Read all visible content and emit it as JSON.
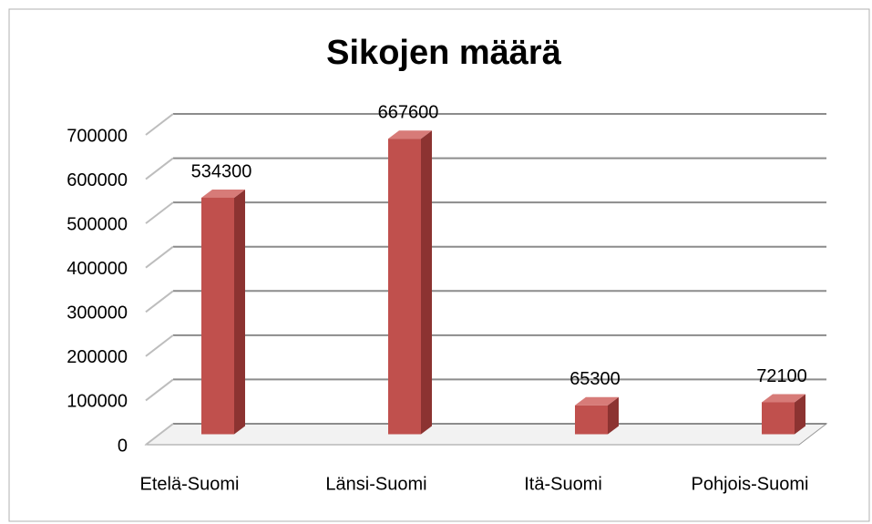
{
  "chart_data": {
    "type": "bar",
    "title": "Sikojen määrä",
    "categories": [
      "Etelä-Suomi",
      "Länsi-Suomi",
      "Itä-Suomi",
      "Pohjois-Suomi"
    ],
    "values": [
      534300,
      667600,
      65300,
      72100
    ],
    "color": "#c0504d",
    "ylim": [
      0,
      700000
    ],
    "yticks": [
      0,
      100000,
      200000,
      300000,
      400000,
      500000,
      600000,
      700000
    ],
    "grid": true
  }
}
